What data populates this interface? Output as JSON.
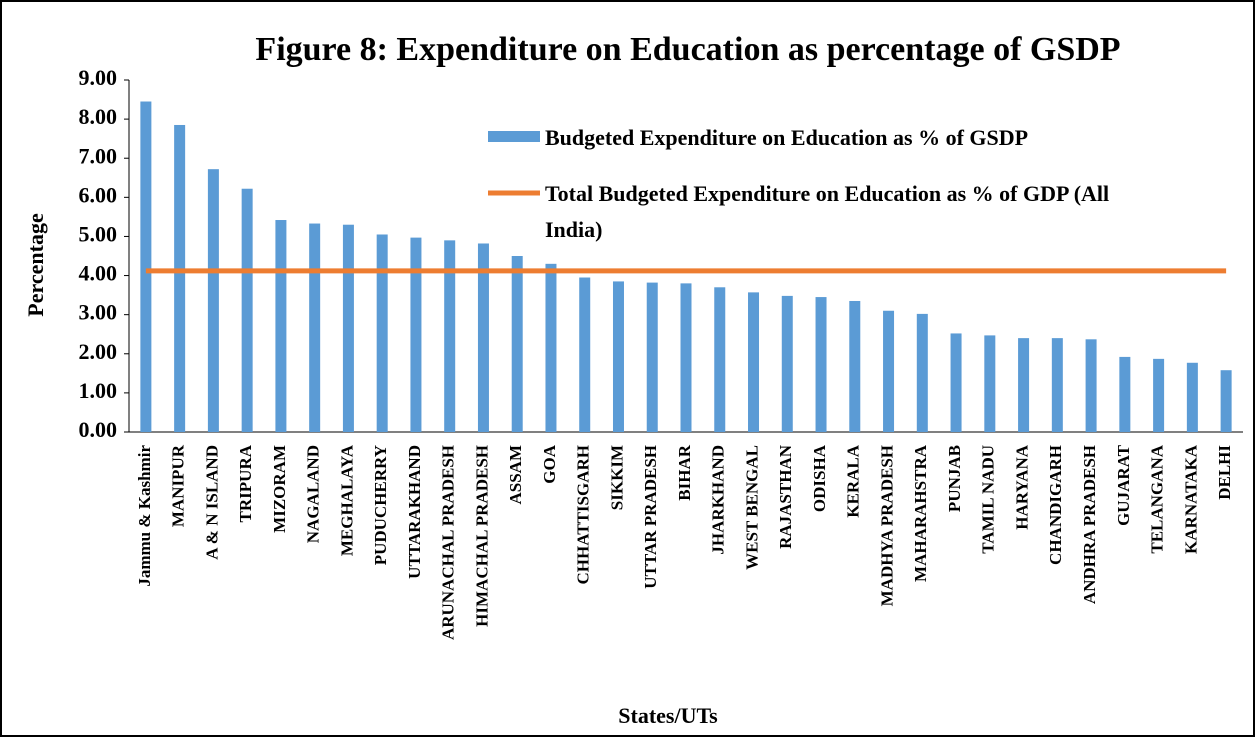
{
  "chart_data": {
    "type": "bar",
    "title": "Figure 8: Expenditure on Education as percentage of GSDP",
    "x_label": "States/UTs",
    "y_label": "Percentage",
    "categories": [
      "Jammu & Kashmir",
      "MANIPUR",
      "A & N ISLAND",
      "TRIPURA",
      "MIZORAM",
      "NAGALAND",
      "MEGHALAYA",
      "PUDUCHERRY",
      "UTTARAKHAND",
      "ARUNACHAL PRADESH",
      "HIMACHAL PRADESH",
      "ASSAM",
      "GOA",
      "CHHATTISGARH",
      "SIKKIM",
      "UTTAR PRADESH",
      "BIHAR",
      "JHARKHAND",
      "WEST BENGAL",
      "RAJASTHAN",
      "ODISHA",
      "KERALA",
      "MADHYA PRADESH",
      "MAHARAHSTRA",
      "PUNJAB",
      "TAMIL NADU",
      "HARYANA",
      "CHANDIGARH",
      "ANDHRA PRADESH",
      "GUJARAT",
      "TELANGANA",
      "KARNATAKA",
      "DELHI"
    ],
    "series": [
      {
        "name": "Budgeted Expenditure on Education as % of GSDP",
        "type": "bar",
        "color": "#5b9bd5",
        "values": [
          8.45,
          7.85,
          6.72,
          6.22,
          5.42,
          5.33,
          5.3,
          5.05,
          4.97,
          4.9,
          4.82,
          4.5,
          4.3,
          3.95,
          3.85,
          3.82,
          3.8,
          3.7,
          3.57,
          3.48,
          3.45,
          3.35,
          3.1,
          3.02,
          2.52,
          2.47,
          2.4,
          2.4,
          2.37,
          1.92,
          1.87,
          1.77,
          1.58
        ]
      },
      {
        "name": "Total Budgeted Expenditure on Education as % of GDP (All India)",
        "type": "line",
        "color": "#ed7d31",
        "values": [
          4.12,
          4.12,
          4.12,
          4.12,
          4.12,
          4.12,
          4.12,
          4.12,
          4.12,
          4.12,
          4.12,
          4.12,
          4.12,
          4.12,
          4.12,
          4.12,
          4.12,
          4.12,
          4.12,
          4.12,
          4.12,
          4.12,
          4.12,
          4.12,
          4.12,
          4.12,
          4.12,
          4.12,
          4.12,
          4.12,
          4.12,
          4.12,
          4.12
        ]
      }
    ],
    "ylim": [
      0,
      9
    ],
    "yticks": [
      {
        "value": 0,
        "label": "0.00"
      },
      {
        "value": 1,
        "label": "1.00"
      },
      {
        "value": 2,
        "label": "2.00"
      },
      {
        "value": 3,
        "label": "3.00"
      },
      {
        "value": 4,
        "label": "4.00"
      },
      {
        "value": 5,
        "label": "5.00"
      },
      {
        "value": 6,
        "label": "6.00"
      },
      {
        "value": 7,
        "label": "7.00"
      },
      {
        "value": 8,
        "label": "8.00"
      },
      {
        "value": 9,
        "label": "9.00"
      }
    ],
    "grid": false
  }
}
